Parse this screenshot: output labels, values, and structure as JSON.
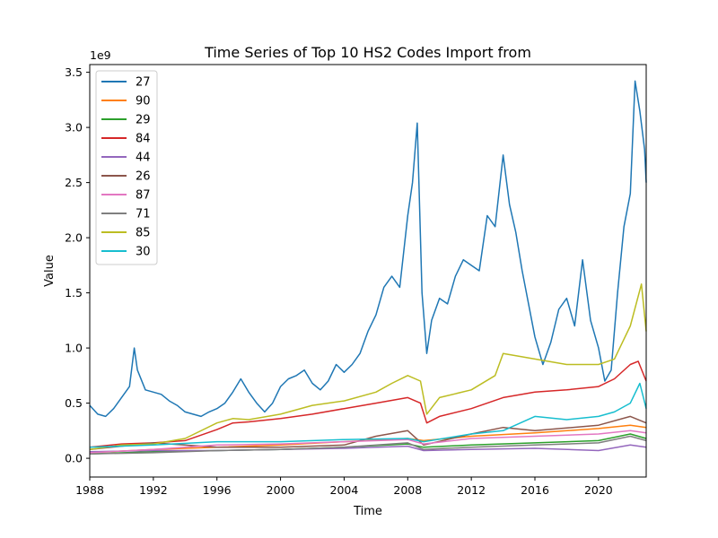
{
  "chart_data": {
    "type": "line",
    "title": "Time Series of Top 10 HS2 Codes Import from",
    "xlabel": "Time",
    "ylabel": "Value",
    "y_scale_label": "1e9",
    "xlim": [
      1988,
      2023.0
    ],
    "ylim": [
      -0.17,
      3.57
    ],
    "x_ticks": [
      1988,
      1992,
      1996,
      2000,
      2004,
      2008,
      2012,
      2016,
      2020
    ],
    "x_tick_labels": [
      "1988",
      "1992",
      "1996",
      "2000",
      "2004",
      "2008",
      "2012",
      "2016",
      "2020"
    ],
    "y_ticks": [
      0.0,
      0.5,
      1.0,
      1.5,
      2.0,
      2.5,
      3.0,
      3.5
    ],
    "y_tick_labels": [
      "0.0",
      "0.5",
      "1.0",
      "1.5",
      "2.0",
      "2.5",
      "3.0",
      "3.5"
    ],
    "legend_position": "top-left",
    "grid": false,
    "series": [
      {
        "name": "27",
        "color": "#1f77b4",
        "x": [
          1988.0,
          1988.5,
          1989.0,
          1989.5,
          1990.0,
          1990.5,
          1990.8,
          1991.0,
          1991.5,
          1992.0,
          1992.5,
          1993.0,
          1993.5,
          1994.0,
          1994.5,
          1995.0,
          1995.5,
          1996.0,
          1996.5,
          1997.0,
          1997.5,
          1998.0,
          1998.5,
          1999.0,
          1999.5,
          2000.0,
          2000.5,
          2001.0,
          2001.5,
          2002.0,
          2002.5,
          2003.0,
          2003.5,
          2004.0,
          2004.5,
          2005.0,
          2005.5,
          2006.0,
          2006.5,
          2007.0,
          2007.5,
          2008.0,
          2008.3,
          2008.6,
          2008.9,
          2009.2,
          2009.5,
          2010.0,
          2010.5,
          2011.0,
          2011.5,
          2012.0,
          2012.5,
          2013.0,
          2013.5,
          2014.0,
          2014.4,
          2014.8,
          2015.2,
          2015.6,
          2016.0,
          2016.5,
          2017.0,
          2017.5,
          2018.0,
          2018.5,
          2019.0,
          2019.5,
          2020.0,
          2020.4,
          2020.8,
          2021.2,
          2021.6,
          2022.0,
          2022.3,
          2022.6,
          2022.9,
          2023.0
        ],
        "values": [
          0.48,
          0.4,
          0.38,
          0.45,
          0.55,
          0.65,
          1.0,
          0.8,
          0.62,
          0.6,
          0.58,
          0.52,
          0.48,
          0.42,
          0.4,
          0.38,
          0.42,
          0.45,
          0.5,
          0.6,
          0.72,
          0.6,
          0.5,
          0.42,
          0.5,
          0.65,
          0.72,
          0.75,
          0.8,
          0.68,
          0.62,
          0.7,
          0.85,
          0.78,
          0.85,
          0.95,
          1.15,
          1.3,
          1.55,
          1.65,
          1.55,
          2.2,
          2.5,
          3.04,
          1.5,
          0.95,
          1.25,
          1.45,
          1.4,
          1.65,
          1.8,
          1.75,
          1.7,
          2.2,
          2.1,
          2.75,
          2.3,
          2.05,
          1.7,
          1.4,
          1.1,
          0.85,
          1.05,
          1.35,
          1.45,
          1.2,
          1.8,
          1.25,
          1.0,
          0.7,
          0.8,
          1.5,
          2.1,
          2.4,
          3.42,
          3.15,
          2.8,
          2.5
        ]
      },
      {
        "name": "90",
        "color": "#ff7f0e",
        "x": [
          1988,
          1992,
          1996,
          2000,
          2004,
          2008,
          2009,
          2012,
          2016,
          2020,
          2022,
          2023
        ],
        "values": [
          0.05,
          0.08,
          0.1,
          0.12,
          0.15,
          0.18,
          0.16,
          0.2,
          0.23,
          0.27,
          0.3,
          0.28
        ]
      },
      {
        "name": "29",
        "color": "#2ca02c",
        "x": [
          1988,
          1992,
          1996,
          2000,
          2004,
          2008,
          2009,
          2012,
          2016,
          2020,
          2022,
          2023
        ],
        "values": [
          0.04,
          0.06,
          0.07,
          0.08,
          0.1,
          0.13,
          0.1,
          0.12,
          0.14,
          0.16,
          0.22,
          0.18
        ]
      },
      {
        "name": "84",
        "color": "#d62728",
        "x": [
          1988.0,
          1990.0,
          1992.0,
          1994.0,
          1996.0,
          1997.0,
          1998.0,
          2000.0,
          2002.0,
          2004.0,
          2006.0,
          2008.0,
          2008.8,
          2009.2,
          2010.0,
          2012.0,
          2014.0,
          2016.0,
          2018.0,
          2020.0,
          2021.0,
          2022.0,
          2022.5,
          2023.0
        ],
        "values": [
          0.1,
          0.13,
          0.14,
          0.16,
          0.26,
          0.32,
          0.33,
          0.36,
          0.4,
          0.45,
          0.5,
          0.55,
          0.5,
          0.32,
          0.38,
          0.45,
          0.55,
          0.6,
          0.62,
          0.65,
          0.72,
          0.85,
          0.88,
          0.7
        ]
      },
      {
        "name": "44",
        "color": "#9467bd",
        "x": [
          1988,
          1992,
          1996,
          2000,
          2004,
          2008,
          2009,
          2012,
          2016,
          2020,
          2022,
          2023
        ],
        "values": [
          0.06,
          0.07,
          0.07,
          0.08,
          0.09,
          0.11,
          0.07,
          0.08,
          0.09,
          0.07,
          0.12,
          0.1
        ]
      },
      {
        "name": "26",
        "color": "#8c564b",
        "x": [
          1988,
          1992,
          1996,
          2000,
          2004,
          2006,
          2008,
          2009,
          2012,
          2014,
          2016,
          2020,
          2022,
          2023
        ],
        "values": [
          0.08,
          0.14,
          0.1,
          0.1,
          0.12,
          0.2,
          0.25,
          0.12,
          0.22,
          0.28,
          0.25,
          0.3,
          0.38,
          0.32
        ]
      },
      {
        "name": "87",
        "color": "#e377c2",
        "x": [
          1988,
          1992,
          1996,
          2000,
          2004,
          2008,
          2009,
          2012,
          2016,
          2020,
          2022,
          2023
        ],
        "values": [
          0.05,
          0.08,
          0.12,
          0.13,
          0.15,
          0.17,
          0.13,
          0.18,
          0.2,
          0.22,
          0.25,
          0.23
        ]
      },
      {
        "name": "71",
        "color": "#7f7f7f",
        "x": [
          1988,
          1992,
          1996,
          2000,
          2004,
          2008,
          2009,
          2012,
          2016,
          2020,
          2022,
          2023
        ],
        "values": [
          0.04,
          0.05,
          0.07,
          0.08,
          0.1,
          0.14,
          0.08,
          0.1,
          0.12,
          0.14,
          0.2,
          0.16
        ]
      },
      {
        "name": "85",
        "color": "#bcbd22",
        "x": [
          1988.0,
          1990.0,
          1992.0,
          1994.0,
          1996.0,
          1997.0,
          1998.0,
          2000.0,
          2002.0,
          2004.0,
          2006.0,
          2007.0,
          2008.0,
          2008.8,
          2009.2,
          2010.0,
          2012.0,
          2013.5,
          2014.0,
          2016.0,
          2018.0,
          2020.0,
          2021.0,
          2022.0,
          2022.7,
          2023.0
        ],
        "values": [
          0.08,
          0.12,
          0.13,
          0.18,
          0.32,
          0.36,
          0.35,
          0.4,
          0.48,
          0.52,
          0.6,
          0.68,
          0.75,
          0.7,
          0.4,
          0.55,
          0.62,
          0.75,
          0.95,
          0.9,
          0.85,
          0.85,
          0.9,
          1.2,
          1.58,
          1.15
        ]
      },
      {
        "name": "30",
        "color": "#17becf",
        "x": [
          1988,
          1992,
          1996,
          2000,
          2004,
          2008,
          2009,
          2012,
          2014,
          2016,
          2018,
          2020,
          2021,
          2022,
          2022.6,
          2023
        ],
        "values": [
          0.1,
          0.12,
          0.15,
          0.15,
          0.17,
          0.18,
          0.15,
          0.22,
          0.25,
          0.38,
          0.35,
          0.38,
          0.42,
          0.5,
          0.68,
          0.45
        ]
      }
    ]
  }
}
